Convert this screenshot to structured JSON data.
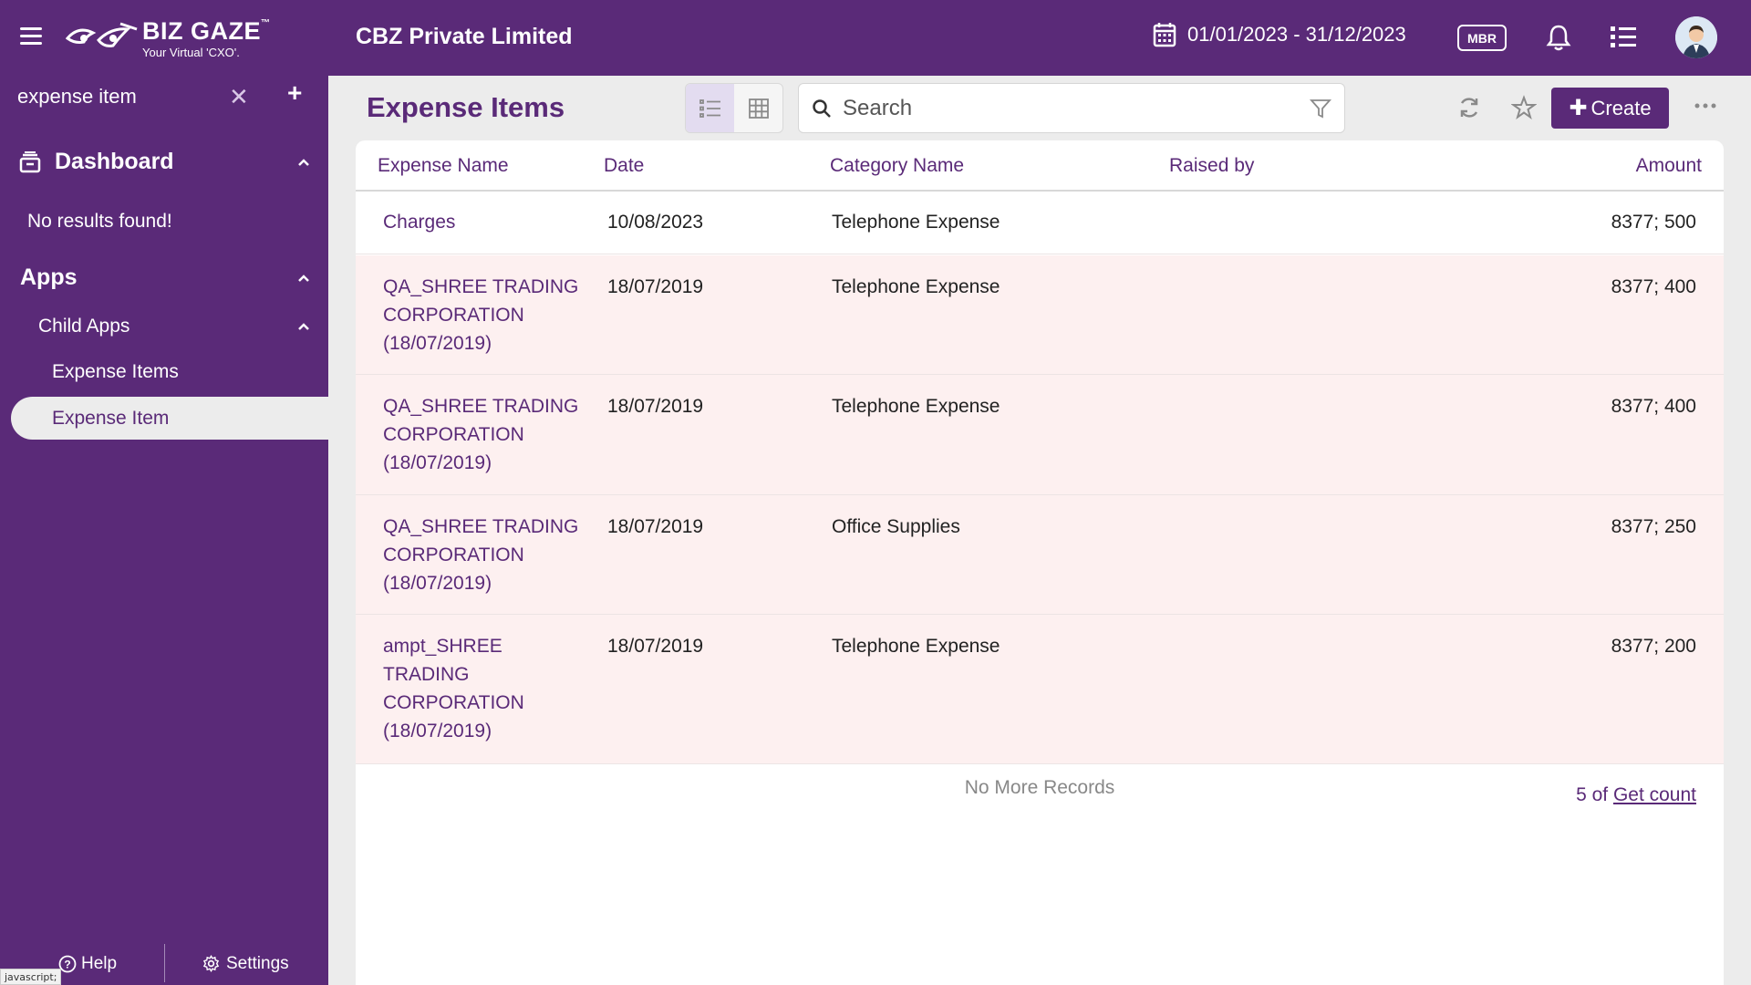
{
  "header": {
    "logo_name": "BIZ GAZE",
    "logo_tm": "™",
    "logo_tagline": "Your Virtual 'CXO'.",
    "company": "CBZ Private Limited",
    "date_range": "01/01/2023 - 31/12/2023",
    "mbr_label": "MBR"
  },
  "sidebar": {
    "search_value": "expense item",
    "dashboard_label": "Dashboard",
    "no_results": "No results found!",
    "apps_label": "Apps",
    "child_apps_label": "Child Apps",
    "expense_items_label": "Expense Items",
    "expense_item_label": "Expense Item",
    "help_label": "Help",
    "settings_label": "Settings",
    "status_text": "javascript;"
  },
  "main": {
    "title": "Expense Items",
    "search_placeholder": "Search",
    "create_label": "Create",
    "columns": {
      "name": "Expense Name",
      "date": "Date",
      "category": "Category Name",
      "raised_by": "Raised by",
      "amount": "Amount"
    },
    "rows": [
      {
        "name": "Charges",
        "date": "10/08/2023",
        "category": "Telephone Expense",
        "raised_by": "",
        "amount": "8377; 500"
      },
      {
        "name": "QA_SHREE TRADING CORPORATION (18/07/2019)",
        "date": "18/07/2019",
        "category": "Telephone Expense",
        "raised_by": "",
        "amount": "8377; 400"
      },
      {
        "name": "QA_SHREE TRADING CORPORATION (18/07/2019)",
        "date": "18/07/2019",
        "category": "Telephone Expense",
        "raised_by": "",
        "amount": "8377; 400"
      },
      {
        "name": "QA_SHREE TRADING CORPORATION (18/07/2019)",
        "date": "18/07/2019",
        "category": "Office Supplies",
        "raised_by": "",
        "amount": "8377; 250"
      },
      {
        "name": "ampt_SHREE TRADING CORPORATION (18/07/2019)",
        "date": "18/07/2019",
        "category": "Telephone Expense",
        "raised_by": "",
        "amount": "8377; 200"
      }
    ],
    "no_more_records": "No More Records",
    "count_prefix": "5 of",
    "get_count_label": "Get count"
  },
  "colors": {
    "brand": "#5a2a78",
    "row_highlight": "#fdf0f0",
    "active_nav_bg": "#ececec"
  }
}
